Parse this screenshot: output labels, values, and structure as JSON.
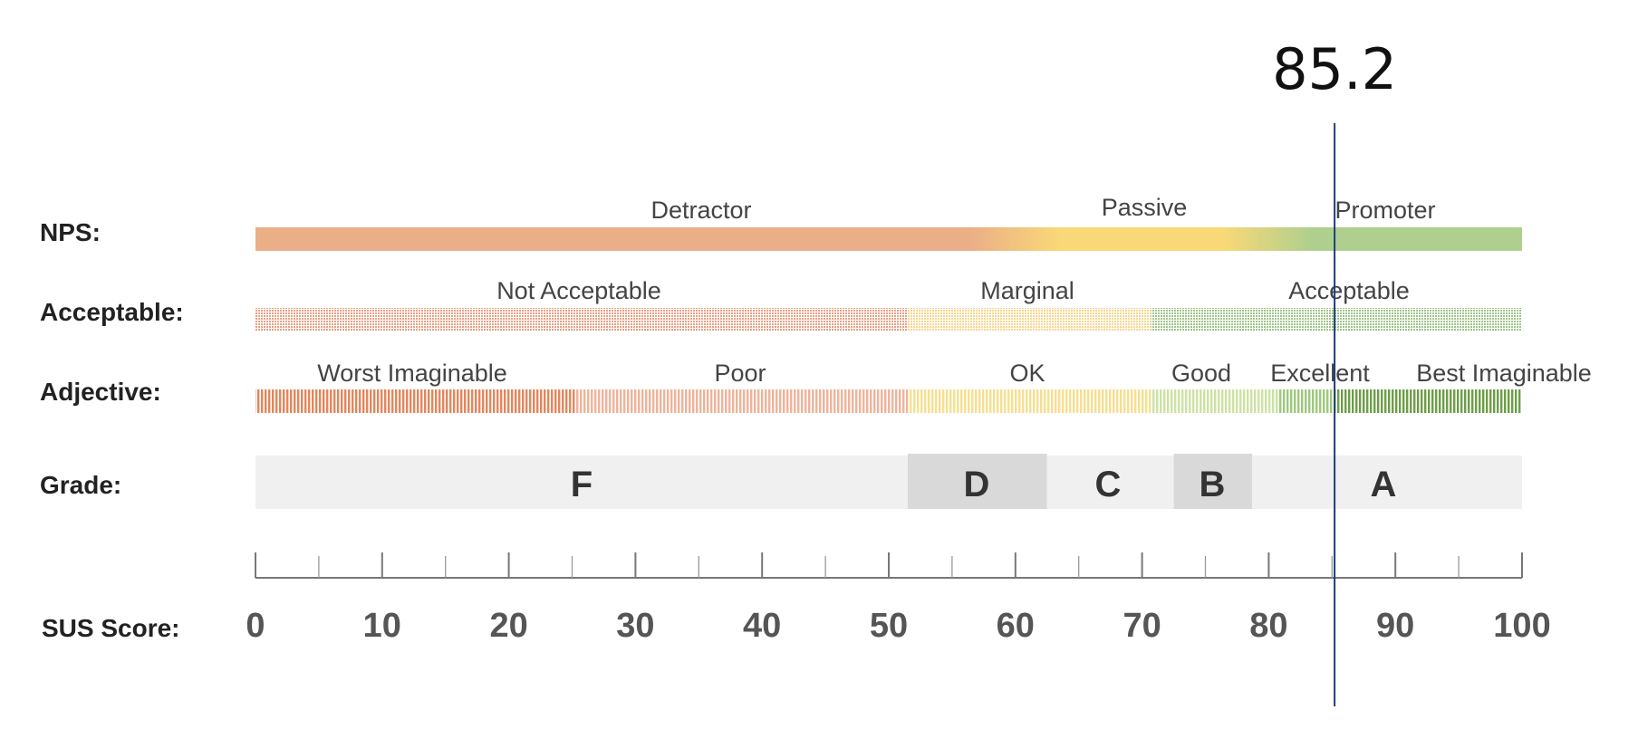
{
  "chart_data": {
    "type": "scale",
    "x_range": [
      0,
      100
    ],
    "marker": {
      "value": 85.2,
      "label": "85.2",
      "color": "#1f3d7a"
    },
    "rows": {
      "nps": {
        "label": "NPS:",
        "segments": [
          {
            "label": "Detractor",
            "start": 0,
            "end": 60,
            "color": "#ebaf87"
          },
          {
            "label": "Passive",
            "start": 60,
            "end": 80,
            "color": "#f8d877"
          },
          {
            "label": "Promoter",
            "start": 80,
            "end": 100,
            "color": "#aecf8e"
          }
        ]
      },
      "acceptable": {
        "label": "Acceptable:",
        "segments": [
          {
            "label": "Not Acceptable",
            "start": 0,
            "end": 51.5,
            "color": "#ec9f82"
          },
          {
            "label": "Marginal",
            "start": 51.5,
            "end": 70.7,
            "color": "#f8d68e"
          },
          {
            "label": "Acceptable",
            "start": 70.7,
            "end": 100,
            "color": "#9fc489"
          }
        ]
      },
      "adjective": {
        "label": "Adjective:",
        "segments": [
          {
            "label": "Worst Imaginable",
            "start": 0,
            "end": 25.3,
            "color": "#e4865b"
          },
          {
            "label": "Poor",
            "start": 25.3,
            "end": 51.5,
            "color": "#efb399"
          },
          {
            "label": "OK",
            "start": 51.5,
            "end": 70.7,
            "color": "#f6df8f"
          },
          {
            "label": "Good",
            "start": 70.7,
            "end": 80.7,
            "color": "#cde2a2"
          },
          {
            "label": "Excellent",
            "start": 80.7,
            "end": 85.2,
            "color": "#9ec87c"
          },
          {
            "label": "Best Imaginable",
            "start": 85.2,
            "end": 100,
            "color": "#6d9e47"
          }
        ]
      },
      "grade": {
        "label": "Grade:",
        "segments": [
          {
            "label": "F",
            "start": 0,
            "end": 51.5,
            "color": "#f0f0f0"
          },
          {
            "label": "D",
            "start": 51.5,
            "end": 62.5,
            "color": "#d9d9d9"
          },
          {
            "label": "C",
            "start": 62.5,
            "end": 72.5,
            "color": "#f0f0f0"
          },
          {
            "label": "B",
            "start": 72.5,
            "end": 78.7,
            "color": "#d9d9d9"
          },
          {
            "label": "A",
            "start": 78.7,
            "end": 100,
            "color": "#f0f0f0"
          }
        ]
      }
    },
    "axis": {
      "label": "SUS Score:",
      "ticks": [
        0,
        10,
        20,
        30,
        40,
        50,
        60,
        70,
        80,
        90,
        100
      ],
      "tick_labels": [
        "0",
        "10",
        "20",
        "30",
        "40",
        "50",
        "60",
        "70",
        "80",
        "90",
        "100"
      ]
    }
  }
}
